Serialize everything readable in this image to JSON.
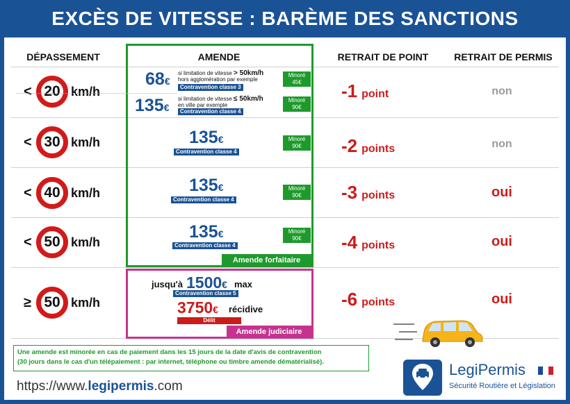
{
  "title": "EXCÈS DE VITESSE : BARÈME DES SANCTIONS",
  "headers": {
    "depassement": "DÉPASSEMENT",
    "amende": "AMENDE",
    "retrait_point": "RETRAIT DE POINT",
    "retrait_permis": "RETRAIT DE PERMIS"
  },
  "unit": "km/h",
  "euro": "€",
  "rows": [
    {
      "symbol": "<",
      "speed": "20",
      "points_n": "-1",
      "points_w": "point",
      "permis": "non",
      "fines": [
        {
          "amount": "68",
          "condition_pre": "si limitation de vitesse",
          "condition_bold": "> 50km/h",
          "condition_sub": "hors agglomération par exemple",
          "classe": "Contravention classe 3",
          "minore_label": "Minoré",
          "minore_value": "45€"
        },
        {
          "amount": "135",
          "condition_pre": "si limitation de vitesse",
          "condition_bold": "≤ 50km/h",
          "condition_sub": "en ville par exemple",
          "classe": "Contravention classe 4",
          "minore_label": "Minoré",
          "minore_value": "90€"
        }
      ]
    },
    {
      "symbol": "<",
      "speed": "30",
      "points_n": "-2",
      "points_w": "points",
      "permis": "non",
      "fine": {
        "amount": "135",
        "classe": "Contravention classe 4",
        "minore_label": "Minoré",
        "minore_value": "90€"
      }
    },
    {
      "symbol": "<",
      "speed": "40",
      "points_n": "-3",
      "points_w": "points",
      "permis": "oui",
      "fine": {
        "amount": "135",
        "classe": "Contravention classe 4",
        "minore_label": "Minoré",
        "minore_value": "90€"
      }
    },
    {
      "symbol": "<",
      "speed": "50",
      "points_n": "-4",
      "points_w": "points",
      "permis": "oui",
      "fine": {
        "amount": "135",
        "classe": "Contravention classe 4",
        "minore_label": "Minoré",
        "minore_value": "90€"
      }
    },
    {
      "symbol": "≥",
      "speed": "50",
      "points_n": "-6",
      "points_w": "points",
      "permis": "oui",
      "judiciaire": {
        "upto": "jusqu'à",
        "max_amount": "1500",
        "max": "max",
        "classe": "Contravention classe 5",
        "recidive_amount": "3750",
        "recidive": "récidive",
        "delit": "Délit"
      }
    }
  ],
  "labels": {
    "forfaitaire": "Amende forfaitaire",
    "judiciaire": "Amende judiciaire"
  },
  "note": {
    "line1": "Une amende est minorée en cas de paiement dans les 15 jours de la date d'avis de contravention",
    "line2": "(30 jours dans le cas d'un télépaiement : par internet, téléphone ou timbre amende dématérialisé)."
  },
  "url": {
    "prefix": "https://www.",
    "domain": "legipermis",
    "suffix": ".com"
  },
  "logo": {
    "name": "LegiPermis",
    "tagline": "Sécurité Routière et Législation",
    "icon": "car-pin-icon",
    "flag": "france-flag-icon"
  },
  "colors": {
    "brand_blue": "#1a5296",
    "green": "#1e9a2c",
    "magenta": "#c5338e",
    "red": "#cc1b1b",
    "grey": "#9a9a9a"
  }
}
